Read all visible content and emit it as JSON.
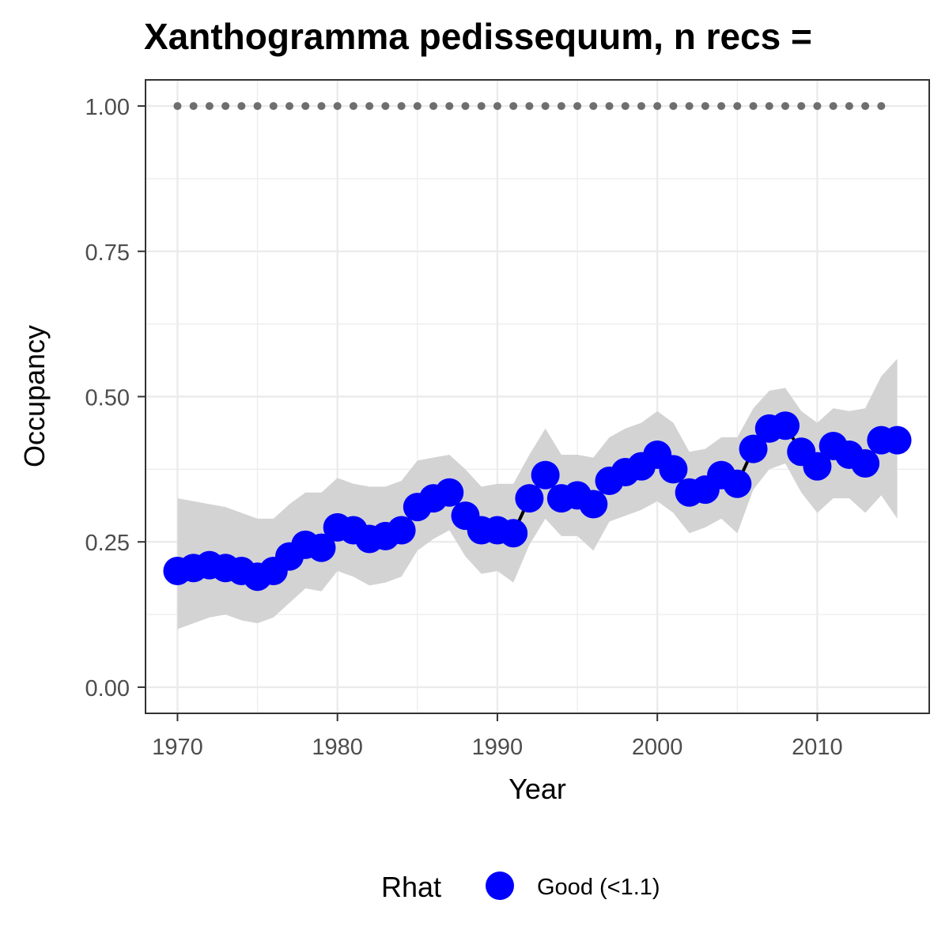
{
  "chart_data": {
    "type": "line",
    "title": "Xanthogramma pedissequum, n recs =",
    "xlabel": "Year",
    "ylabel": "Occupancy",
    "xlim": [
      1968,
      2017
    ],
    "ylim": [
      -0.045,
      1.045
    ],
    "x_ticks": [
      1970,
      1980,
      1990,
      2000,
      2010
    ],
    "x_tick_labels": [
      "1970",
      "1980",
      "1990",
      "2000",
      "2010"
    ],
    "y_ticks": [
      0,
      0.25,
      0.5,
      0.75,
      1.0
    ],
    "y_tick_labels": [
      "0.00",
      "0.25",
      "0.50",
      "0.75",
      "1.00"
    ],
    "grid": true,
    "legend": {
      "title": "Rhat",
      "placement": "bottom",
      "entries": [
        {
          "label": "Good (<1.1)",
          "color": "#0000ff"
        }
      ]
    },
    "colors": {
      "points": "#0000ff",
      "line": "#000000",
      "ribbon": "#d3d3d3",
      "reference": "#6e6e6e",
      "grid": "#ebebeb",
      "panel_border": "#333333"
    },
    "x": [
      1970,
      1971,
      1972,
      1973,
      1974,
      1975,
      1976,
      1977,
      1978,
      1979,
      1980,
      1981,
      1982,
      1983,
      1984,
      1985,
      1986,
      1987,
      1988,
      1989,
      1990,
      1991,
      1992,
      1993,
      1994,
      1995,
      1996,
      1997,
      1998,
      1999,
      2000,
      2001,
      2002,
      2003,
      2004,
      2005,
      2006,
      2007,
      2008,
      2009,
      2010,
      2011,
      2012,
      2013,
      2014,
      2015
    ],
    "series": [
      {
        "name": "Good (<1.1)",
        "values": [
          0.2,
          0.205,
          0.21,
          0.205,
          0.2,
          0.19,
          0.2,
          0.225,
          0.245,
          0.24,
          0.275,
          0.27,
          0.255,
          0.26,
          0.27,
          0.31,
          0.325,
          0.335,
          0.295,
          0.27,
          0.27,
          0.265,
          0.325,
          0.365,
          0.325,
          0.33,
          0.315,
          0.355,
          0.37,
          0.38,
          0.4,
          0.375,
          0.335,
          0.34,
          0.365,
          0.35,
          0.41,
          0.445,
          0.45,
          0.405,
          0.38,
          0.415,
          0.4,
          0.385,
          0.425,
          0.425
        ]
      }
    ],
    "ribbon": {
      "lower": [
        0.1,
        0.11,
        0.12,
        0.125,
        0.115,
        0.11,
        0.12,
        0.145,
        0.17,
        0.165,
        0.2,
        0.19,
        0.175,
        0.18,
        0.19,
        0.235,
        0.255,
        0.27,
        0.225,
        0.195,
        0.2,
        0.18,
        0.245,
        0.29,
        0.26,
        0.26,
        0.235,
        0.285,
        0.295,
        0.305,
        0.32,
        0.3,
        0.265,
        0.275,
        0.29,
        0.265,
        0.34,
        0.375,
        0.385,
        0.335,
        0.3,
        0.325,
        0.325,
        0.3,
        0.33,
        0.29
      ],
      "upper": [
        0.325,
        0.32,
        0.315,
        0.31,
        0.3,
        0.29,
        0.29,
        0.315,
        0.335,
        0.335,
        0.36,
        0.35,
        0.345,
        0.345,
        0.355,
        0.39,
        0.395,
        0.4,
        0.375,
        0.345,
        0.35,
        0.35,
        0.4,
        0.445,
        0.4,
        0.4,
        0.395,
        0.43,
        0.445,
        0.455,
        0.475,
        0.455,
        0.405,
        0.41,
        0.43,
        0.43,
        0.48,
        0.51,
        0.515,
        0.475,
        0.455,
        0.48,
        0.475,
        0.48,
        0.535,
        0.565
      ]
    },
    "reference": {
      "y": 1.0,
      "x": [
        1970,
        1971,
        1972,
        1973,
        1974,
        1975,
        1976,
        1977,
        1978,
        1979,
        1980,
        1981,
        1982,
        1983,
        1984,
        1985,
        1986,
        1987,
        1988,
        1989,
        1990,
        1991,
        1992,
        1993,
        1994,
        1995,
        1996,
        1997,
        1998,
        1999,
        2000,
        2001,
        2002,
        2003,
        2004,
        2005,
        2006,
        2007,
        2008,
        2009,
        2010,
        2011,
        2012,
        2013,
        2014
      ]
    }
  }
}
